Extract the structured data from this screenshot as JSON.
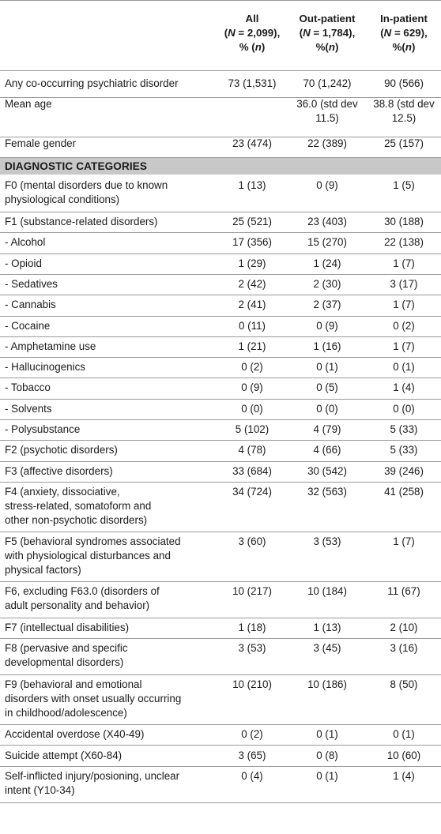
{
  "table": {
    "headers": [
      [
        "All",
        "(N = 2,099),",
        "% (n)"
      ],
      [
        "Out-patient",
        "(N = 1,784),",
        "%(n)"
      ],
      [
        "In-patient",
        "(N = 629),",
        "%(n)"
      ]
    ],
    "section_title": "DIAGNOSTIC CATEGORIES",
    "rows_top": [
      {
        "label": [
          "Any co-occurring psychiatric disorder"
        ],
        "values": [
          [
            "73 (1,531)"
          ],
          [
            "70 (1,242)"
          ],
          [
            "90 (566)"
          ]
        ]
      },
      {
        "label": [
          "Mean age"
        ],
        "values": [
          [
            ""
          ],
          [
            "36.0 (std dev",
            "11.5)"
          ],
          [
            "38.8 (std dev",
            "12.5)"
          ]
        ]
      },
      {
        "label": [
          "Female gender"
        ],
        "values": [
          [
            "23 (474)"
          ],
          [
            "22 (389)"
          ],
          [
            "25 (157)"
          ]
        ]
      }
    ],
    "rows": [
      {
        "label": [
          "F0 (mental disorders due to known",
          "physiological conditions)"
        ],
        "values": [
          [
            "1 (13)"
          ],
          [
            "0 (9)"
          ],
          [
            "1 (5)"
          ]
        ]
      },
      {
        "label": [
          "F1 (substance-related disorders)"
        ],
        "values": [
          [
            "25 (521)"
          ],
          [
            "23 (403)"
          ],
          [
            "30 (188)"
          ]
        ]
      },
      {
        "label": [
          "-  Alcohol"
        ],
        "values": [
          [
            "17 (356)"
          ],
          [
            "15 (270)"
          ],
          [
            "22 (138)"
          ]
        ]
      },
      {
        "label": [
          "-  Opioid"
        ],
        "values": [
          [
            "1 (29)"
          ],
          [
            "1 (24)"
          ],
          [
            "1 (7)"
          ]
        ]
      },
      {
        "label": [
          "-  Sedatives"
        ],
        "values": [
          [
            "2 (42)"
          ],
          [
            "2 (30)"
          ],
          [
            "3 (17)"
          ]
        ]
      },
      {
        "label": [
          "-  Cannabis"
        ],
        "values": [
          [
            "2 (41)"
          ],
          [
            "2 (37)"
          ],
          [
            "1 (7)"
          ]
        ]
      },
      {
        "label": [
          "-  Cocaine"
        ],
        "values": [
          [
            "0 (11)"
          ],
          [
            "0 (9)"
          ],
          [
            "0 (2)"
          ]
        ]
      },
      {
        "label": [
          "-  Amphetamine use"
        ],
        "values": [
          [
            "1 (21)"
          ],
          [
            "1 (16)"
          ],
          [
            "1 (7)"
          ]
        ]
      },
      {
        "label": [
          "-  Hallucinogenics"
        ],
        "values": [
          [
            "0 (2)"
          ],
          [
            "0 (1)"
          ],
          [
            "0 (1)"
          ]
        ]
      },
      {
        "label": [
          "-  Tobacco"
        ],
        "values": [
          [
            "0 (9)"
          ],
          [
            "0 (5)"
          ],
          [
            "1 (4)"
          ]
        ]
      },
      {
        "label": [
          "-  Solvents"
        ],
        "values": [
          [
            "0 (0)"
          ],
          [
            "0 (0)"
          ],
          [
            "0 (0)"
          ]
        ]
      },
      {
        "label": [
          "-  Polysubstance"
        ],
        "values": [
          [
            "5 (102)"
          ],
          [
            "4 (79)"
          ],
          [
            "5 (33)"
          ]
        ]
      },
      {
        "label": [
          "F2 (psychotic disorders)"
        ],
        "values": [
          [
            "4 (78)"
          ],
          [
            "4 (66)"
          ],
          [
            "5 (33)"
          ]
        ]
      },
      {
        "label": [
          "F3 (affective disorders)"
        ],
        "values": [
          [
            "33 (684)"
          ],
          [
            "30 (542)"
          ],
          [
            "39 (246)"
          ]
        ]
      },
      {
        "label": [
          "F4 (anxiety, dissociative,",
          "stress-related, somatoform and",
          "other non-psychotic disorders)"
        ],
        "values": [
          [
            "34 (724)"
          ],
          [
            "32 (563)"
          ],
          [
            "41 (258)"
          ]
        ]
      },
      {
        "label": [
          "F5 (behavioral syndromes associated",
          "with physiological disturbances and",
          "physical factors)"
        ],
        "values": [
          [
            "3 (60)"
          ],
          [
            "3 (53)"
          ],
          [
            "1 (7)"
          ]
        ]
      },
      {
        "label": [
          "F6, excluding F63.0 (disorders of",
          "adult personality and behavior)"
        ],
        "values": [
          [
            "10 (217)"
          ],
          [
            "10 (184)"
          ],
          [
            "11 (67)"
          ]
        ]
      },
      {
        "label": [
          "F7 (intellectual disabilities)"
        ],
        "values": [
          [
            "1 (18)"
          ],
          [
            "1 (13)"
          ],
          [
            "2 (10)"
          ]
        ]
      },
      {
        "label": [
          "F8 (pervasive and specific",
          "developmental disorders)"
        ],
        "values": [
          [
            "3 (53)"
          ],
          [
            "3 (45)"
          ],
          [
            "3 (16)"
          ]
        ]
      },
      {
        "label": [
          "F9 (behavioral and emotional",
          "disorders with onset usually occurring",
          "in childhood/adolescence)"
        ],
        "values": [
          [
            "10 (210)"
          ],
          [
            "10 (186)"
          ],
          [
            "8 (50)"
          ]
        ]
      },
      {
        "label": [
          "Accidental overdose (X40-49)"
        ],
        "values": [
          [
            "0 (2)"
          ],
          [
            "0 (1)"
          ],
          [
            "0 (1)"
          ]
        ]
      },
      {
        "label": [
          "Suicide attempt (X60-84)"
        ],
        "values": [
          [
            "3 (65)"
          ],
          [
            "0 (8)"
          ],
          [
            "10 (60)"
          ]
        ]
      },
      {
        "label": [
          "Self-inflicted injury/posioning, unclear",
          "intent (Y10-34)"
        ],
        "values": [
          [
            "0 (4)"
          ],
          [
            "0 (1)"
          ],
          [
            "1 (4)"
          ]
        ]
      }
    ]
  }
}
